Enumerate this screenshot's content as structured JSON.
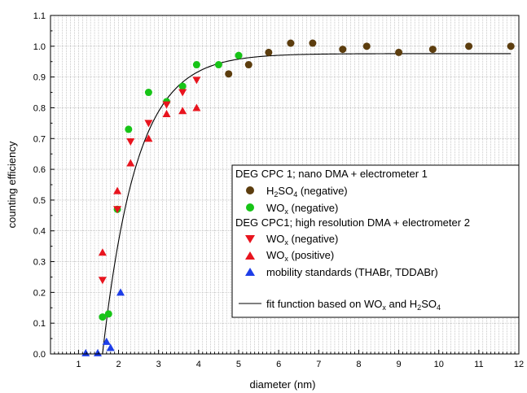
{
  "chart_data": {
    "type": "scatter",
    "xlabel": "diameter (nm)",
    "ylabel": "counting efficiency",
    "xlim": [
      0.3,
      12
    ],
    "ylim": [
      0,
      1.1
    ],
    "x_ticks": [
      "1",
      "2",
      "3",
      "4",
      "5",
      "6",
      "7",
      "8",
      "9",
      "10",
      "11",
      "12"
    ],
    "y_ticks": [
      "0.0",
      "0.1",
      "0.2",
      "0.3",
      "0.4",
      "0.5",
      "0.6",
      "0.7",
      "0.8",
      "0.9",
      "1.0",
      "1.1"
    ],
    "grid": true,
    "legend_position": "right",
    "legend": {
      "group1_header": "DEG CPC 1; nano DMA + electrometer 1",
      "group2_header": "DEG CPC1; high resolution DMA + electrometer 2",
      "fit_label": "fit function based on WO",
      "fit_sub1": "x",
      "fit_mid": " and H",
      "fit_sub2": "2",
      "fit_mid2": "SO",
      "fit_sub3": "4"
    },
    "series": [
      {
        "name": "H2SO4 (negative)",
        "label_pre": "H",
        "label_sub1": "2",
        "label_mid": "SO",
        "label_sub2": "4",
        "label_post": " (negative)",
        "marker": "circle",
        "color": "#5c3d0e",
        "points": [
          [
            4.75,
            0.91
          ],
          [
            5.25,
            0.94
          ],
          [
            5.75,
            0.98
          ],
          [
            6.3,
            1.01
          ],
          [
            6.85,
            1.01
          ],
          [
            7.6,
            0.99
          ],
          [
            8.2,
            1.0
          ],
          [
            9.0,
            0.98
          ],
          [
            9.85,
            0.99
          ],
          [
            10.75,
            1.0
          ],
          [
            11.8,
            1.0
          ]
        ]
      },
      {
        "name": "WOx (negative)",
        "label_pre": "WO",
        "label_sub1": "x",
        "label_post": " (negative)",
        "marker": "circle",
        "color": "#17c417",
        "points": [
          [
            1.6,
            0.12
          ],
          [
            1.75,
            0.13
          ],
          [
            1.97,
            0.47
          ],
          [
            2.25,
            0.73
          ],
          [
            2.75,
            0.85
          ],
          [
            3.2,
            0.82
          ],
          [
            3.6,
            0.87
          ],
          [
            3.95,
            0.94
          ],
          [
            4.5,
            0.94
          ],
          [
            5.0,
            0.97
          ]
        ]
      },
      {
        "name": "WOx (negative)",
        "label_pre": "WO",
        "label_sub1": "x",
        "label_post": " (negative)",
        "marker": "triangle-down",
        "color": "#e8141e",
        "points": [
          [
            1.6,
            0.24
          ],
          [
            1.97,
            0.47
          ],
          [
            2.3,
            0.69
          ],
          [
            2.75,
            0.75
          ],
          [
            3.2,
            0.81
          ],
          [
            3.6,
            0.85
          ],
          [
            3.95,
            0.89
          ]
        ]
      },
      {
        "name": "WOx (positive)",
        "label_pre": "WO",
        "label_sub1": "x",
        "label_post": " (positive)",
        "marker": "triangle-up",
        "color": "#e8141e",
        "points": [
          [
            1.6,
            0.33
          ],
          [
            1.97,
            0.53
          ],
          [
            2.3,
            0.62
          ],
          [
            2.75,
            0.7
          ],
          [
            3.2,
            0.78
          ],
          [
            3.6,
            0.79
          ],
          [
            3.95,
            0.8
          ]
        ]
      },
      {
        "name": "mobility standards (THABr, TDDABr)",
        "label_pre": "mobility standards (THABr, TDDABr)",
        "marker": "triangle-up",
        "color": "#1e3ee8",
        "points": [
          [
            1.18,
            0.003
          ],
          [
            1.48,
            0.003
          ],
          [
            1.7,
            0.04
          ],
          [
            1.8,
            0.02
          ],
          [
            2.05,
            0.2
          ]
        ]
      }
    ],
    "fit_curve": {
      "name": "fit function based on WOx and H2SO4",
      "color": "#000000",
      "asymptote": 0.976,
      "x0": 1.6,
      "tau": 0.85,
      "x_range": [
        1.6,
        11.8
      ]
    }
  }
}
